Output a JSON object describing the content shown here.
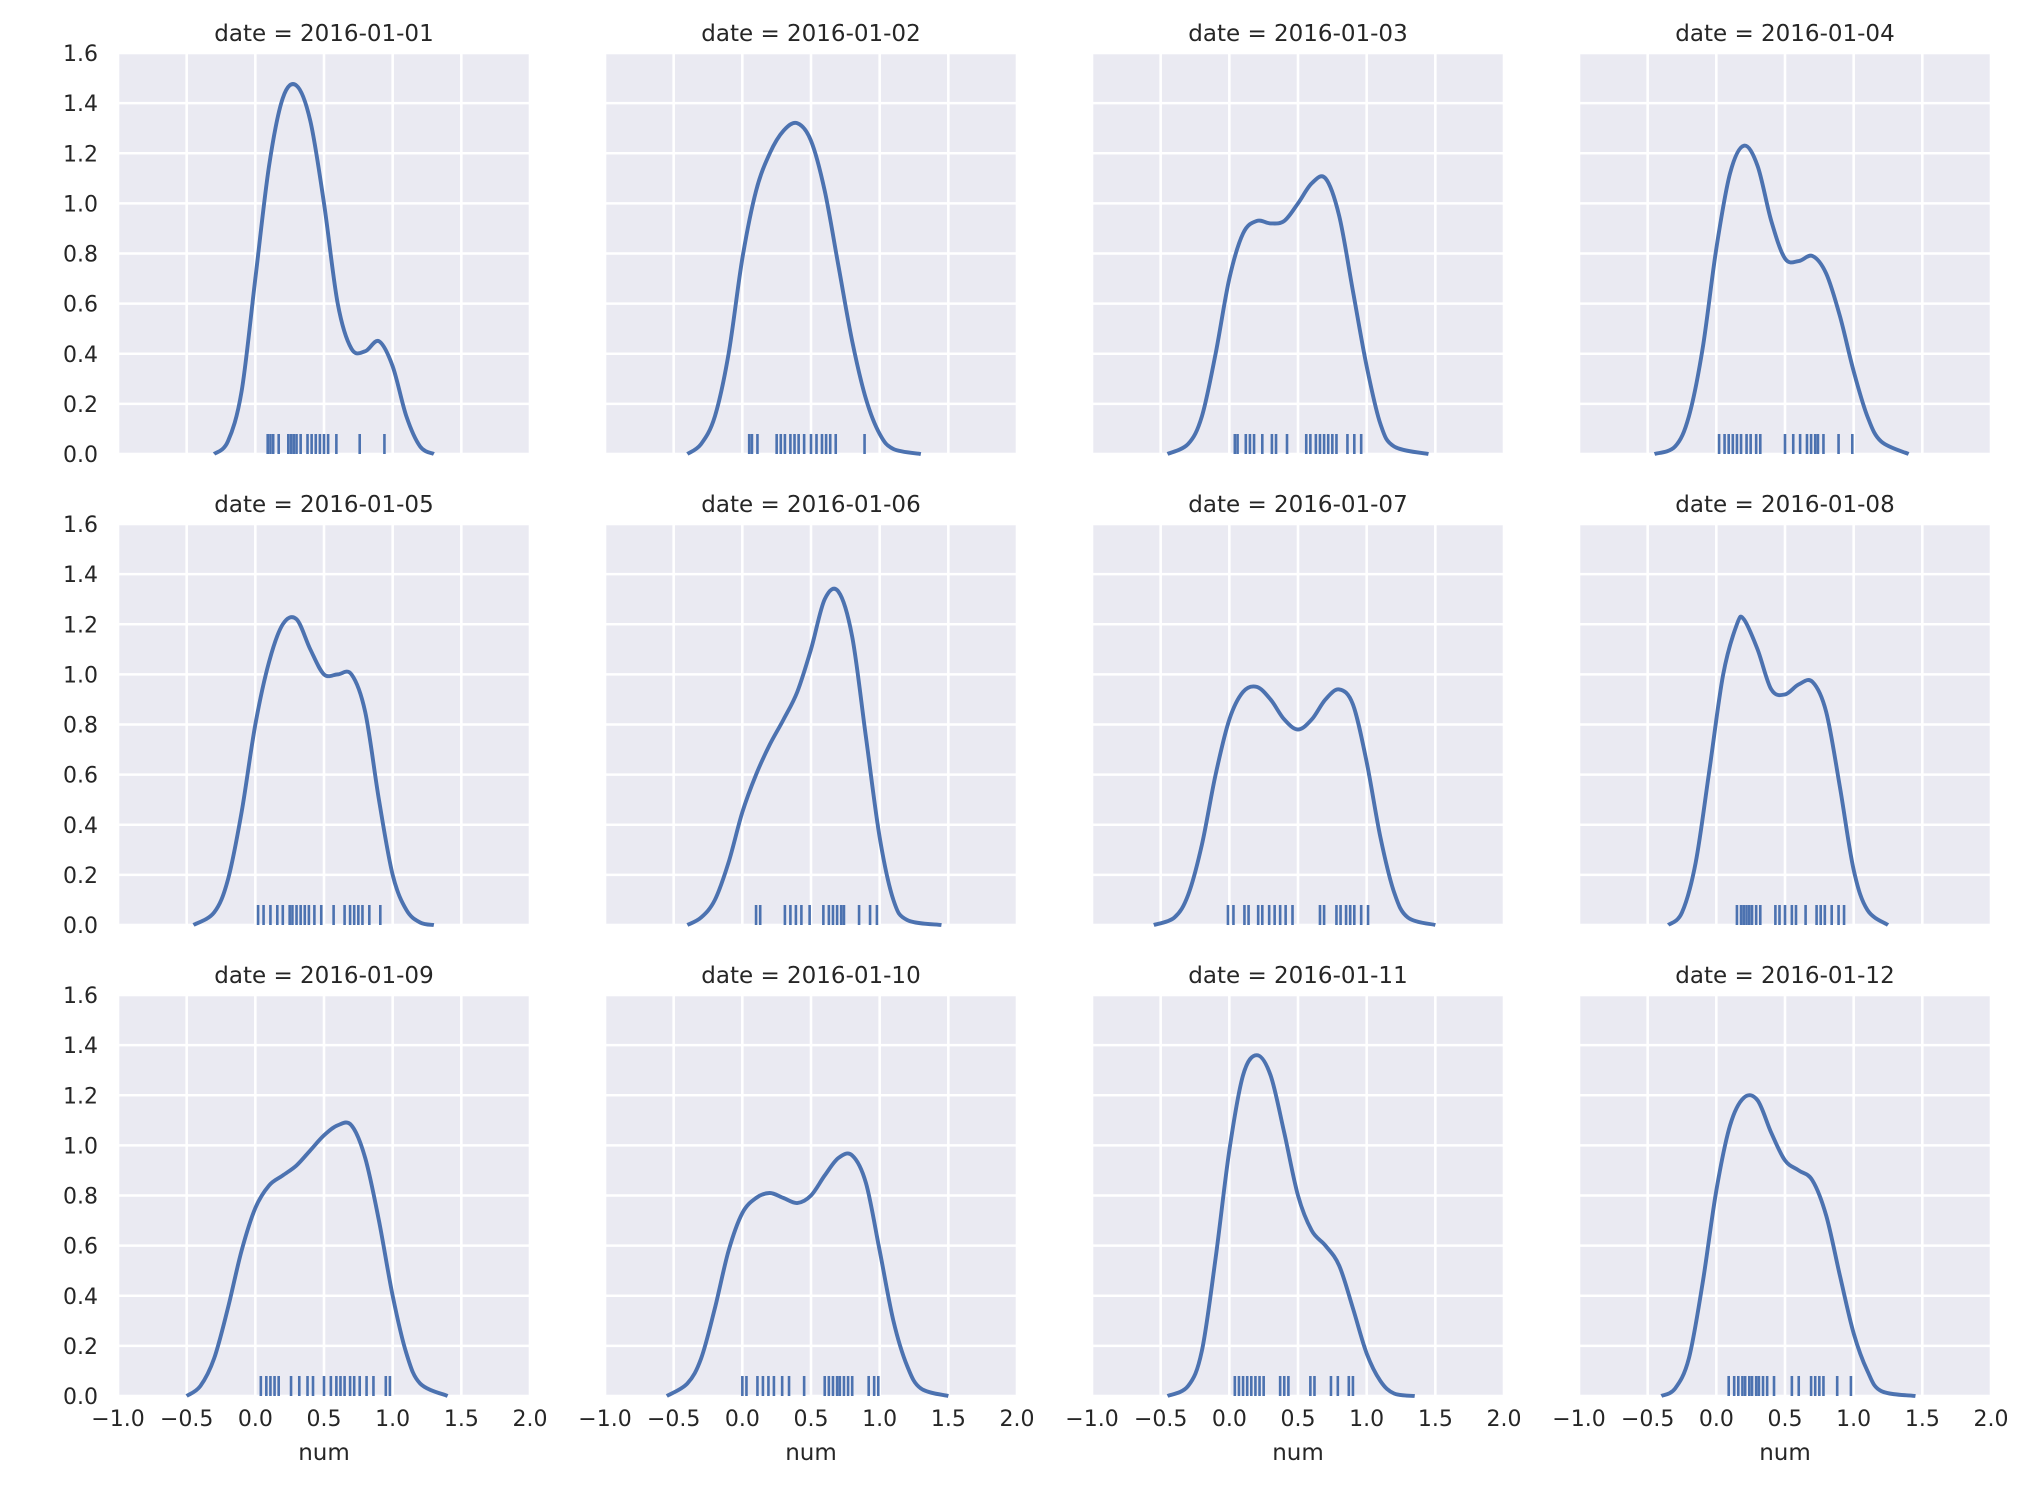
{
  "chart_data": {
    "type": "facet-kde",
    "facet_label_prefix": "date = ",
    "xlabel": "num",
    "xlim": [
      -1.0,
      2.0
    ],
    "ylim": [
      0.0,
      1.6
    ],
    "x_ticks": [
      -1.0,
      -0.5,
      0.0,
      0.5,
      1.0,
      1.5,
      2.0
    ],
    "x_tick_labels": [
      "−1.0",
      "−0.5",
      "0.0",
      "0.5",
      "1.0",
      "1.5",
      "2.0"
    ],
    "y_ticks": [
      0.0,
      0.2,
      0.4,
      0.6,
      0.8,
      1.0,
      1.2,
      1.4,
      1.6
    ],
    "y_tick_labels": [
      "0.0",
      "0.2",
      "0.4",
      "0.6",
      "0.8",
      "1.0",
      "1.2",
      "1.4",
      "1.6"
    ],
    "grid": true,
    "line_color": "#4c72b0",
    "background_color": "#eaeaf2",
    "panels": [
      {
        "facet": "2016-01-01",
        "curve": [
          [
            -0.3,
            0.0
          ],
          [
            -0.2,
            0.05
          ],
          [
            -0.1,
            0.25
          ],
          [
            0.0,
            0.7
          ],
          [
            0.1,
            1.15
          ],
          [
            0.2,
            1.42
          ],
          [
            0.3,
            1.47
          ],
          [
            0.4,
            1.33
          ],
          [
            0.5,
            1.0
          ],
          [
            0.6,
            0.6
          ],
          [
            0.7,
            0.42
          ],
          [
            0.8,
            0.41
          ],
          [
            0.9,
            0.45
          ],
          [
            1.0,
            0.35
          ],
          [
            1.1,
            0.15
          ],
          [
            1.2,
            0.03
          ],
          [
            1.3,
            0.0
          ]
        ],
        "rug": [
          0.09,
          0.11,
          0.13,
          0.17,
          0.24,
          0.26,
          0.28,
          0.3,
          0.33,
          0.38,
          0.41,
          0.44,
          0.47,
          0.5,
          0.53,
          0.59,
          0.76,
          0.94
        ]
      },
      {
        "facet": "2016-01-02",
        "curve": [
          [
            -0.4,
            0.0
          ],
          [
            -0.3,
            0.04
          ],
          [
            -0.2,
            0.15
          ],
          [
            -0.1,
            0.4
          ],
          [
            0.0,
            0.78
          ],
          [
            0.1,
            1.05
          ],
          [
            0.2,
            1.2
          ],
          [
            0.3,
            1.29
          ],
          [
            0.4,
            1.32
          ],
          [
            0.5,
            1.25
          ],
          [
            0.6,
            1.05
          ],
          [
            0.7,
            0.75
          ],
          [
            0.8,
            0.45
          ],
          [
            0.9,
            0.22
          ],
          [
            1.0,
            0.08
          ],
          [
            1.1,
            0.02
          ],
          [
            1.3,
            0.0
          ]
        ],
        "rug": [
          0.05,
          0.07,
          0.11,
          0.25,
          0.28,
          0.31,
          0.35,
          0.38,
          0.41,
          0.45,
          0.5,
          0.54,
          0.58,
          0.61,
          0.64,
          0.68,
          0.89
        ]
      },
      {
        "facet": "2016-01-03",
        "curve": [
          [
            -0.45,
            0.0
          ],
          [
            -0.3,
            0.04
          ],
          [
            -0.2,
            0.15
          ],
          [
            -0.1,
            0.4
          ],
          [
            0.0,
            0.7
          ],
          [
            0.1,
            0.88
          ],
          [
            0.2,
            0.93
          ],
          [
            0.3,
            0.92
          ],
          [
            0.4,
            0.93
          ],
          [
            0.5,
            1.0
          ],
          [
            0.6,
            1.08
          ],
          [
            0.7,
            1.1
          ],
          [
            0.8,
            0.95
          ],
          [
            0.9,
            0.65
          ],
          [
            1.0,
            0.35
          ],
          [
            1.1,
            0.12
          ],
          [
            1.2,
            0.03
          ],
          [
            1.45,
            0.0
          ]
        ],
        "rug": [
          0.04,
          0.06,
          0.12,
          0.15,
          0.18,
          0.24,
          0.31,
          0.34,
          0.42,
          0.56,
          0.59,
          0.63,
          0.66,
          0.69,
          0.72,
          0.75,
          0.78,
          0.86,
          0.91,
          0.96
        ]
      },
      {
        "facet": "2016-01-04",
        "curve": [
          [
            -0.45,
            0.0
          ],
          [
            -0.3,
            0.03
          ],
          [
            -0.2,
            0.15
          ],
          [
            -0.1,
            0.42
          ],
          [
            0.0,
            0.82
          ],
          [
            0.1,
            1.12
          ],
          [
            0.2,
            1.23
          ],
          [
            0.3,
            1.15
          ],
          [
            0.4,
            0.93
          ],
          [
            0.5,
            0.78
          ],
          [
            0.6,
            0.77
          ],
          [
            0.7,
            0.79
          ],
          [
            0.8,
            0.72
          ],
          [
            0.9,
            0.55
          ],
          [
            1.0,
            0.33
          ],
          [
            1.1,
            0.15
          ],
          [
            1.2,
            0.05
          ],
          [
            1.4,
            0.0
          ]
        ],
        "rug": [
          0.02,
          0.06,
          0.09,
          0.12,
          0.15,
          0.18,
          0.22,
          0.25,
          0.29,
          0.32,
          0.5,
          0.56,
          0.61,
          0.66,
          0.69,
          0.72,
          0.74,
          0.78,
          0.89,
          0.99
        ]
      },
      {
        "facet": "2016-01-05",
        "curve": [
          [
            -0.45,
            0.0
          ],
          [
            -0.3,
            0.05
          ],
          [
            -0.2,
            0.18
          ],
          [
            -0.1,
            0.45
          ],
          [
            0.0,
            0.8
          ],
          [
            0.1,
            1.05
          ],
          [
            0.2,
            1.2
          ],
          [
            0.3,
            1.22
          ],
          [
            0.4,
            1.1
          ],
          [
            0.5,
            1.0
          ],
          [
            0.6,
            1.0
          ],
          [
            0.7,
            1.0
          ],
          [
            0.8,
            0.85
          ],
          [
            0.9,
            0.5
          ],
          [
            1.0,
            0.2
          ],
          [
            1.1,
            0.06
          ],
          [
            1.2,
            0.01
          ],
          [
            1.3,
            0.0
          ]
        ],
        "rug": [
          0.02,
          0.06,
          0.11,
          0.16,
          0.2,
          0.25,
          0.27,
          0.3,
          0.33,
          0.36,
          0.39,
          0.43,
          0.48,
          0.57,
          0.65,
          0.69,
          0.72,
          0.75,
          0.78,
          0.83,
          0.91
        ]
      },
      {
        "facet": "2016-01-06",
        "curve": [
          [
            -0.4,
            0.0
          ],
          [
            -0.3,
            0.03
          ],
          [
            -0.2,
            0.1
          ],
          [
            -0.1,
            0.25
          ],
          [
            0.0,
            0.45
          ],
          [
            0.1,
            0.6
          ],
          [
            0.2,
            0.72
          ],
          [
            0.3,
            0.82
          ],
          [
            0.4,
            0.93
          ],
          [
            0.5,
            1.1
          ],
          [
            0.6,
            1.3
          ],
          [
            0.7,
            1.33
          ],
          [
            0.8,
            1.15
          ],
          [
            0.9,
            0.75
          ],
          [
            1.0,
            0.35
          ],
          [
            1.1,
            0.1
          ],
          [
            1.2,
            0.02
          ],
          [
            1.45,
            0.0
          ]
        ],
        "rug": [
          0.1,
          0.13,
          0.31,
          0.35,
          0.39,
          0.43,
          0.49,
          0.59,
          0.63,
          0.66,
          0.69,
          0.72,
          0.74,
          0.85,
          0.93,
          0.98
        ]
      },
      {
        "facet": "2016-01-07",
        "curve": [
          [
            -0.55,
            0.0
          ],
          [
            -0.4,
            0.03
          ],
          [
            -0.3,
            0.12
          ],
          [
            -0.2,
            0.32
          ],
          [
            -0.1,
            0.6
          ],
          [
            0.0,
            0.82
          ],
          [
            0.1,
            0.93
          ],
          [
            0.2,
            0.95
          ],
          [
            0.3,
            0.9
          ],
          [
            0.4,
            0.82
          ],
          [
            0.5,
            0.78
          ],
          [
            0.6,
            0.82
          ],
          [
            0.7,
            0.9
          ],
          [
            0.8,
            0.94
          ],
          [
            0.9,
            0.88
          ],
          [
            1.0,
            0.65
          ],
          [
            1.1,
            0.35
          ],
          [
            1.2,
            0.13
          ],
          [
            1.3,
            0.03
          ],
          [
            1.5,
            0.0
          ]
        ],
        "rug": [
          -0.01,
          0.03,
          0.11,
          0.14,
          0.21,
          0.24,
          0.29,
          0.33,
          0.37,
          0.41,
          0.46,
          0.66,
          0.69,
          0.78,
          0.81,
          0.85,
          0.88,
          0.91,
          0.96,
          1.01
        ]
      },
      {
        "facet": "2016-01-08",
        "curve": [
          [
            -0.35,
            0.0
          ],
          [
            -0.25,
            0.05
          ],
          [
            -0.15,
            0.25
          ],
          [
            -0.05,
            0.62
          ],
          [
            0.05,
            1.0
          ],
          [
            0.15,
            1.2
          ],
          [
            0.2,
            1.22
          ],
          [
            0.3,
            1.1
          ],
          [
            0.4,
            0.94
          ],
          [
            0.5,
            0.92
          ],
          [
            0.6,
            0.96
          ],
          [
            0.7,
            0.97
          ],
          [
            0.8,
            0.85
          ],
          [
            0.9,
            0.55
          ],
          [
            1.0,
            0.22
          ],
          [
            1.1,
            0.06
          ],
          [
            1.25,
            0.0
          ]
        ],
        "rug": [
          0.15,
          0.18,
          0.2,
          0.22,
          0.24,
          0.26,
          0.29,
          0.32,
          0.43,
          0.46,
          0.5,
          0.55,
          0.58,
          0.65,
          0.73,
          0.76,
          0.79,
          0.84,
          0.89,
          0.93
        ]
      },
      {
        "facet": "2016-01-09",
        "curve": [
          [
            -0.5,
            0.0
          ],
          [
            -0.4,
            0.04
          ],
          [
            -0.3,
            0.15
          ],
          [
            -0.2,
            0.35
          ],
          [
            -0.1,
            0.58
          ],
          [
            0.0,
            0.75
          ],
          [
            0.1,
            0.84
          ],
          [
            0.2,
            0.88
          ],
          [
            0.3,
            0.92
          ],
          [
            0.4,
            0.98
          ],
          [
            0.5,
            1.04
          ],
          [
            0.6,
            1.08
          ],
          [
            0.7,
            1.08
          ],
          [
            0.8,
            0.95
          ],
          [
            0.9,
            0.7
          ],
          [
            1.0,
            0.4
          ],
          [
            1.1,
            0.17
          ],
          [
            1.2,
            0.05
          ],
          [
            1.4,
            0.0
          ]
        ],
        "rug": [
          0.04,
          0.08,
          0.11,
          0.14,
          0.17,
          0.26,
          0.32,
          0.38,
          0.42,
          0.5,
          0.55,
          0.59,
          0.62,
          0.65,
          0.69,
          0.72,
          0.76,
          0.81,
          0.86,
          0.95,
          0.98
        ]
      },
      {
        "facet": "2016-01-10",
        "curve": [
          [
            -0.55,
            0.0
          ],
          [
            -0.4,
            0.05
          ],
          [
            -0.3,
            0.15
          ],
          [
            -0.2,
            0.35
          ],
          [
            -0.1,
            0.58
          ],
          [
            0.0,
            0.73
          ],
          [
            0.1,
            0.79
          ],
          [
            0.2,
            0.81
          ],
          [
            0.3,
            0.79
          ],
          [
            0.4,
            0.77
          ],
          [
            0.5,
            0.8
          ],
          [
            0.6,
            0.88
          ],
          [
            0.7,
            0.95
          ],
          [
            0.8,
            0.96
          ],
          [
            0.9,
            0.85
          ],
          [
            1.0,
            0.58
          ],
          [
            1.1,
            0.3
          ],
          [
            1.2,
            0.12
          ],
          [
            1.3,
            0.03
          ],
          [
            1.5,
            0.0
          ]
        ],
        "rug": [
          0.0,
          0.03,
          0.11,
          0.15,
          0.19,
          0.23,
          0.29,
          0.34,
          0.45,
          0.6,
          0.63,
          0.66,
          0.69,
          0.71,
          0.74,
          0.77,
          0.8,
          0.92,
          0.96,
          0.99
        ]
      },
      {
        "facet": "2016-01-11",
        "curve": [
          [
            -0.45,
            0.0
          ],
          [
            -0.3,
            0.04
          ],
          [
            -0.2,
            0.18
          ],
          [
            -0.1,
            0.55
          ],
          [
            0.0,
            0.98
          ],
          [
            0.1,
            1.28
          ],
          [
            0.2,
            1.36
          ],
          [
            0.3,
            1.28
          ],
          [
            0.4,
            1.05
          ],
          [
            0.5,
            0.8
          ],
          [
            0.6,
            0.66
          ],
          [
            0.7,
            0.6
          ],
          [
            0.8,
            0.52
          ],
          [
            0.9,
            0.35
          ],
          [
            1.0,
            0.17
          ],
          [
            1.1,
            0.06
          ],
          [
            1.2,
            0.01
          ],
          [
            1.35,
            0.0
          ]
        ],
        "rug": [
          0.04,
          0.07,
          0.1,
          0.13,
          0.16,
          0.19,
          0.22,
          0.25,
          0.37,
          0.4,
          0.43,
          0.59,
          0.62,
          0.74,
          0.79,
          0.87,
          0.9
        ]
      },
      {
        "facet": "2016-01-12",
        "curve": [
          [
            -0.4,
            0.0
          ],
          [
            -0.3,
            0.03
          ],
          [
            -0.2,
            0.15
          ],
          [
            -0.1,
            0.45
          ],
          [
            0.0,
            0.82
          ],
          [
            0.1,
            1.08
          ],
          [
            0.2,
            1.19
          ],
          [
            0.3,
            1.18
          ],
          [
            0.4,
            1.05
          ],
          [
            0.5,
            0.94
          ],
          [
            0.6,
            0.9
          ],
          [
            0.7,
            0.86
          ],
          [
            0.8,
            0.72
          ],
          [
            0.9,
            0.48
          ],
          [
            1.0,
            0.25
          ],
          [
            1.1,
            0.1
          ],
          [
            1.2,
            0.02
          ],
          [
            1.45,
            0.0
          ]
        ],
        "rug": [
          0.09,
          0.13,
          0.16,
          0.19,
          0.21,
          0.24,
          0.26,
          0.29,
          0.31,
          0.34,
          0.37,
          0.42,
          0.55,
          0.6,
          0.69,
          0.72,
          0.75,
          0.78,
          0.88,
          0.98
        ]
      }
    ]
  }
}
